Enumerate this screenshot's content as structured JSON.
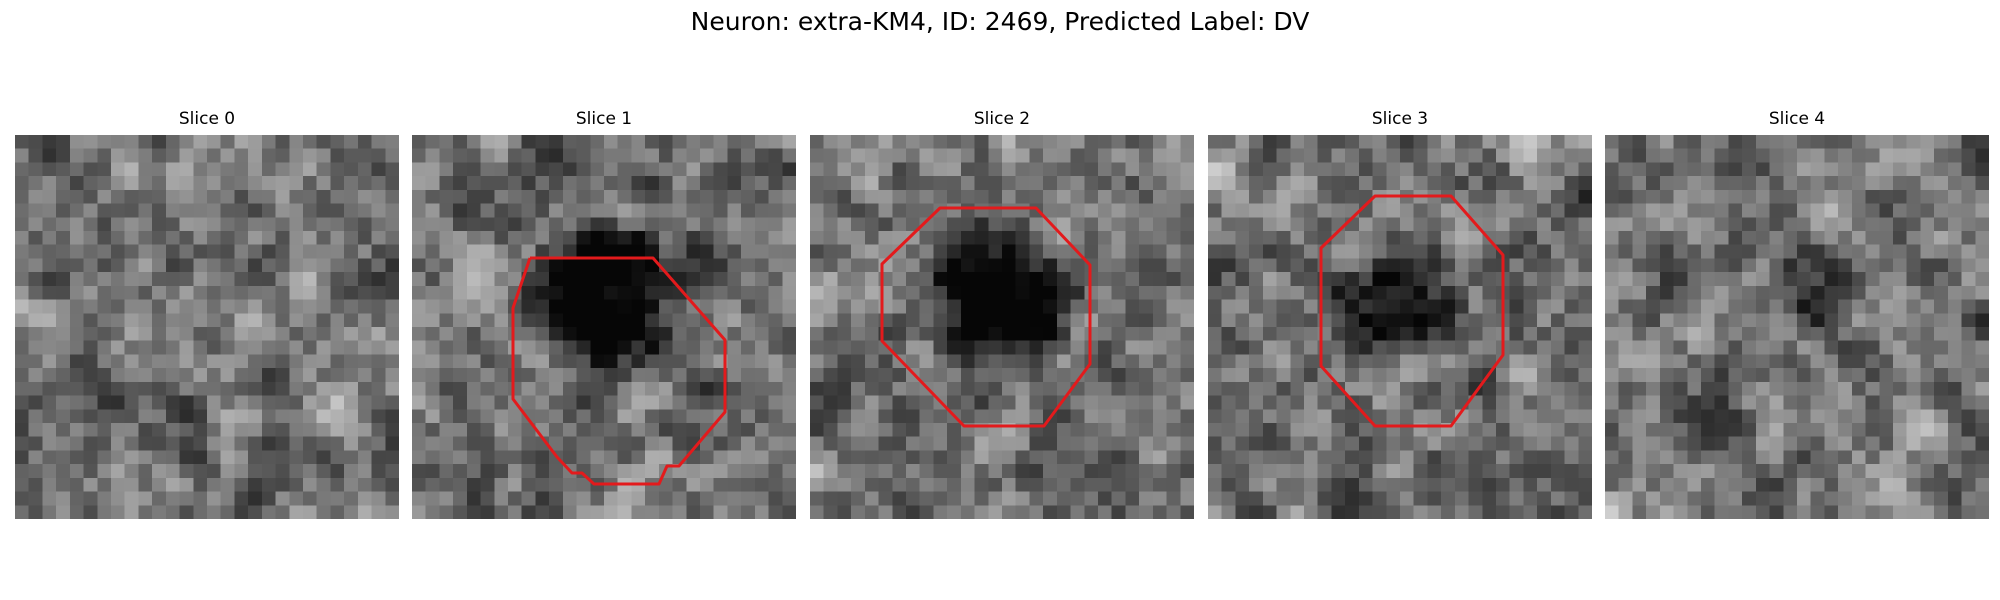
{
  "figure": {
    "title": "Neuron: extra-KM4, ID: 2469, Predicted Label: DV"
  },
  "contour_color": "#e31a1c",
  "slices": [
    {
      "label": "Slice 0",
      "has_contour": false,
      "dark_blob": "none"
    },
    {
      "label": "Slice 1",
      "has_contour": true,
      "dark_blob": "strong"
    },
    {
      "label": "Slice 2",
      "has_contour": true,
      "dark_blob": "strong"
    },
    {
      "label": "Slice 3",
      "has_contour": true,
      "dark_blob": "medium"
    },
    {
      "label": "Slice 4",
      "has_contour": false,
      "dark_blob": "faint"
    }
  ]
}
